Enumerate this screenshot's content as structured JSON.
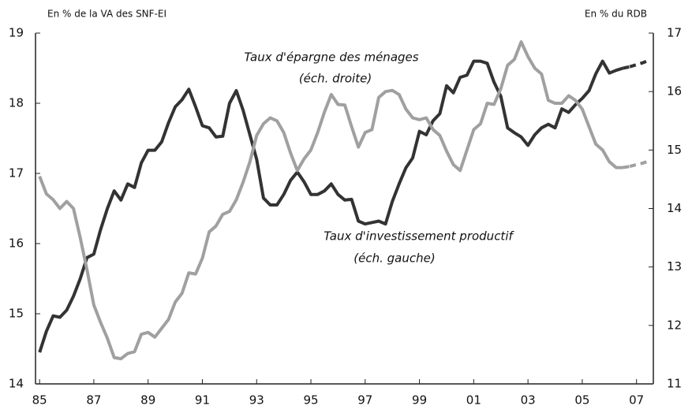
{
  "chart_data": {
    "type": "line",
    "y_label": "En % de la VA des SNF-EI",
    "y2_label": "En % du RDB",
    "annotations": [
      "Taux d'épargne des ménages",
      "(éch. droite)",
      "Taux d'investissement productif",
      "(éch. gauche)"
    ],
    "x": [
      1985,
      1985.25,
      1985.5,
      1985.75,
      1986,
      1986.25,
      1986.5,
      1986.75,
      1987,
      1987.25,
      1987.5,
      1987.75,
      1988,
      1988.25,
      1988.5,
      1988.75,
      1989,
      1989.25,
      1989.5,
      1989.75,
      1990,
      1990.25,
      1990.5,
      1990.75,
      1991,
      1991.25,
      1991.5,
      1991.75,
      1992,
      1992.25,
      1992.5,
      1992.75,
      1993,
      1993.25,
      1993.5,
      1993.75,
      1994,
      1994.25,
      1994.5,
      1994.75,
      1995,
      1995.25,
      1995.5,
      1995.75,
      1996,
      1996.25,
      1996.5,
      1996.75,
      1997,
      1997.25,
      1997.5,
      1997.75,
      1998,
      1998.25,
      1998.5,
      1998.75,
      1999,
      1999.25,
      1999.5,
      1999.75,
      2000,
      2000.25,
      2000.5,
      2000.75,
      2001,
      2001.25,
      2001.5,
      2001.75,
      2002,
      2002.25,
      2002.5,
      2002.75,
      2003,
      2003.25,
      2003.5,
      2003.75,
      2004,
      2004.25,
      2004.5,
      2004.75,
      2005,
      2005.25,
      2005.5,
      2005.75,
      2006,
      2006.25,
      2006.5,
      2006.75,
      2007,
      2007.25,
      2007.5
    ],
    "series": [
      {
        "color": "#333333",
        "axis": "y",
        "dashed": false,
        "values": [
          14.45,
          14.75,
          14.97,
          14.95,
          15.05,
          15.25,
          15.5,
          15.8,
          15.85,
          16.2,
          16.5,
          16.75,
          16.62,
          16.85,
          16.8,
          17.15,
          17.33,
          17.33,
          17.45,
          17.72,
          17.95,
          18.05,
          18.2,
          17.95,
          17.68,
          17.65,
          17.52,
          17.53,
          18.0,
          18.18,
          17.9,
          17.55,
          17.2,
          16.65,
          16.55,
          16.55,
          16.7,
          16.9,
          17.02,
          16.88,
          16.7,
          16.7,
          16.75,
          16.85,
          16.7,
          16.62,
          16.63,
          16.32,
          16.28,
          16.3,
          16.32,
          16.28,
          16.6,
          16.85,
          17.08,
          17.22,
          17.6,
          17.55,
          17.75,
          17.85,
          18.25,
          18.15,
          18.37,
          18.4,
          18.6,
          18.6,
          18.57,
          18.3,
          18.1,
          17.65,
          17.58,
          17.52,
          17.4,
          17.55,
          17.65,
          17.7,
          17.65,
          17.92,
          17.87,
          17.98,
          18.07,
          18.18,
          18.42,
          18.6,
          18.43,
          18.47,
          18.5,
          null,
          null,
          null,
          null
        ]
      },
      {
        "color": "#333333",
        "axis": "y",
        "dashed": true,
        "values": [
          null,
          null,
          null,
          null,
          null,
          null,
          null,
          null,
          null,
          null,
          null,
          null,
          null,
          null,
          null,
          null,
          null,
          null,
          null,
          null,
          null,
          null,
          null,
          null,
          null,
          null,
          null,
          null,
          null,
          null,
          null,
          null,
          null,
          null,
          null,
          null,
          null,
          null,
          null,
          null,
          null,
          null,
          null,
          null,
          null,
          null,
          null,
          null,
          null,
          null,
          null,
          null,
          null,
          null,
          null,
          null,
          null,
          null,
          null,
          null,
          null,
          null,
          null,
          null,
          null,
          null,
          null,
          null,
          null,
          null,
          null,
          null,
          null,
          null,
          null,
          null,
          null,
          null,
          null,
          null,
          null,
          null,
          null,
          null,
          null,
          null,
          null,
          18.52,
          18.55,
          18.58,
          18.62
        ]
      },
      {
        "color": "#a0a0a0",
        "axis": "y2",
        "dashed": false,
        "values": [
          14.55,
          14.25,
          14.15,
          14.0,
          14.12,
          14.0,
          13.5,
          12.95,
          12.35,
          12.05,
          11.78,
          11.45,
          11.43,
          11.52,
          11.55,
          11.85,
          11.88,
          11.8,
          11.95,
          12.1,
          12.4,
          12.55,
          12.9,
          12.88,
          13.15,
          13.6,
          13.7,
          13.9,
          13.95,
          14.15,
          14.45,
          14.8,
          15.25,
          15.45,
          15.55,
          15.5,
          15.3,
          14.95,
          14.65,
          14.85,
          15.0,
          15.3,
          15.65,
          15.95,
          15.78,
          15.77,
          15.4,
          15.05,
          15.3,
          15.35,
          15.9,
          16.0,
          16.02,
          15.95,
          15.7,
          15.55,
          15.52,
          15.55,
          15.35,
          15.25,
          14.98,
          14.75,
          14.65,
          15.0,
          15.35,
          15.45,
          15.8,
          15.78,
          16.05,
          16.45,
          16.55,
          16.85,
          16.6,
          16.4,
          16.3,
          15.85,
          15.8,
          15.8,
          15.93,
          15.85,
          15.7,
          15.4,
          15.1,
          15.0,
          14.8,
          14.7,
          14.7,
          null,
          null,
          null,
          null
        ]
      },
      {
        "color": "#a0a0a0",
        "axis": "y2",
        "dashed": true,
        "values": [
          null,
          null,
          null,
          null,
          null,
          null,
          null,
          null,
          null,
          null,
          null,
          null,
          null,
          null,
          null,
          null,
          null,
          null,
          null,
          null,
          null,
          null,
          null,
          null,
          null,
          null,
          null,
          null,
          null,
          null,
          null,
          null,
          null,
          null,
          null,
          null,
          null,
          null,
          null,
          null,
          null,
          null,
          null,
          null,
          null,
          null,
          null,
          null,
          null,
          null,
          null,
          null,
          null,
          null,
          null,
          null,
          null,
          null,
          null,
          null,
          null,
          null,
          null,
          null,
          null,
          null,
          null,
          null,
          null,
          null,
          null,
          null,
          null,
          null,
          null,
          null,
          null,
          null,
          null,
          null,
          null,
          null,
          null,
          null,
          null,
          null,
          null,
          14.72,
          14.75,
          14.78,
          14.82
        ]
      }
    ],
    "xlim": [
      1984.85,
      2007.62
    ],
    "xticks": [
      {
        "value": 1985,
        "label": "85"
      },
      {
        "value": 1987,
        "label": "87"
      },
      {
        "value": 1989,
        "label": "89"
      },
      {
        "value": 1991,
        "label": "91"
      },
      {
        "value": 1993,
        "label": "93"
      },
      {
        "value": 1995,
        "label": "95"
      },
      {
        "value": 1997,
        "label": "97"
      },
      {
        "value": 1999,
        "label": "99"
      },
      {
        "value": 2001,
        "label": "01"
      },
      {
        "value": 2003,
        "label": "03"
      },
      {
        "value": 2005,
        "label": "05"
      },
      {
        "value": 2007,
        "label": "07"
      }
    ],
    "ylim": [
      14,
      19
    ],
    "yticks": [
      14,
      15,
      16,
      17,
      18,
      19
    ],
    "y2lim": [
      11,
      17
    ],
    "y2ticks": [
      11,
      12,
      13,
      14,
      15,
      16,
      17
    ]
  }
}
